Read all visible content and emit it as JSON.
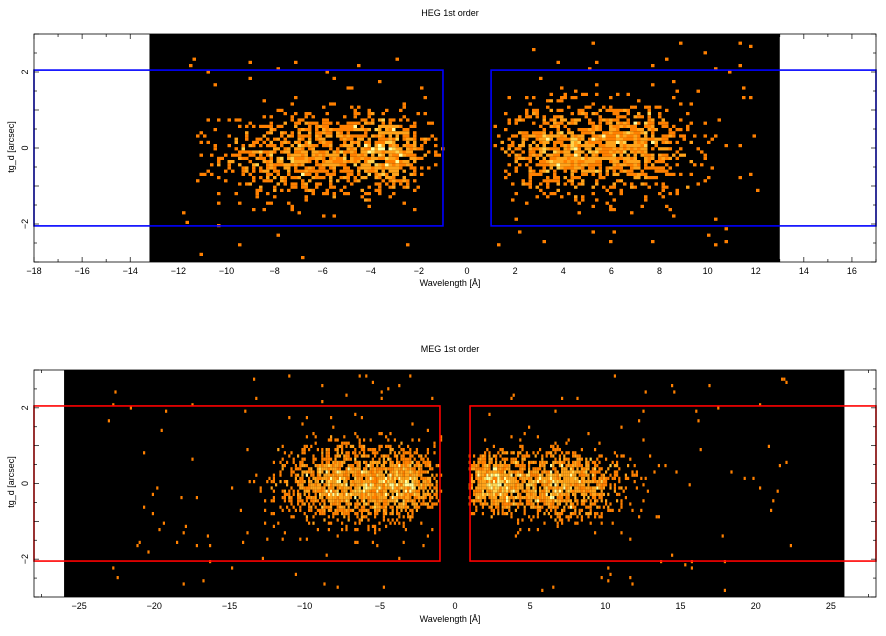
{
  "chart_data": [
    {
      "type": "heatmap",
      "panel": "heg",
      "title": "HEG 1st order",
      "xlabel": "Wavelength [Å]",
      "ylabel": "tg_d [arcsec]",
      "xlim": [
        -18,
        17
      ],
      "ylim": [
        -3,
        3
      ],
      "data_xrange": [
        -13.2,
        13.0
      ],
      "xticks": [
        -18,
        -16,
        -14,
        -12,
        -10,
        -8,
        -6,
        -4,
        -2,
        0,
        2,
        4,
        6,
        8,
        10,
        12,
        14,
        16
      ],
      "yticks": [
        -2,
        0,
        2
      ],
      "colormap": [
        "#000000",
        "#ff8000",
        "#ffa31a",
        "#ffd24d",
        "#ffffa0"
      ],
      "regions": [
        {
          "x": [
            -18,
            -1.0
          ],
          "y": [
            -2.05,
            2.05
          ],
          "color": "#0000ff"
        },
        {
          "x": [
            1.0,
            17
          ],
          "y": [
            -2.05,
            2.05
          ],
          "color": "#0000ff"
        }
      ],
      "emission_blobs": [
        {
          "center": [
            -7.0,
            -0.2
          ],
          "width": [
            1.6,
            0.55
          ],
          "weight": 1.0
        },
        {
          "center": [
            -3.5,
            -0.1
          ],
          "width": [
            1.0,
            0.5
          ],
          "weight": 0.9
        },
        {
          "center": [
            3.8,
            0.0
          ],
          "width": [
            1.1,
            0.55
          ],
          "weight": 0.9
        },
        {
          "center": [
            6.8,
            0.0
          ],
          "width": [
            1.3,
            0.6
          ],
          "weight": 1.0
        }
      ]
    },
    {
      "type": "heatmap",
      "panel": "meg",
      "title": "MEG 1st order",
      "xlabel": "Wavelength [Å]",
      "ylabel": "tg_d [arcsec]",
      "xlim": [
        -28,
        28
      ],
      "ylim": [
        -3,
        3
      ],
      "data_xrange": [
        -26.0,
        25.9
      ],
      "xticks": [
        -25,
        -20,
        -15,
        -10,
        -5,
        0,
        5,
        10,
        15,
        20,
        25
      ],
      "yticks": [
        -2,
        0,
        2
      ],
      "colormap": [
        "#000000",
        "#ff8000",
        "#ffa31a",
        "#ffd24d",
        "#ffffa0"
      ],
      "regions": [
        {
          "x": [
            -28,
            -1.0
          ],
          "y": [
            -2.05,
            2.05
          ],
          "color": "#ff0000"
        },
        {
          "x": [
            1.0,
            28
          ],
          "y": [
            -2.05,
            2.05
          ],
          "color": "#ff0000"
        }
      ],
      "emission_blobs": [
        {
          "center": [
            -7.5,
            0.0
          ],
          "width": [
            2.0,
            0.5
          ],
          "weight": 1.0
        },
        {
          "center": [
            -3.5,
            0.0
          ],
          "width": [
            1.2,
            0.45
          ],
          "weight": 0.6
        },
        {
          "center": [
            6.8,
            0.0
          ],
          "width": [
            2.2,
            0.45
          ],
          "weight": 1.0
        },
        {
          "center": [
            2.5,
            0.0
          ],
          "width": [
            1.0,
            0.35
          ],
          "weight": 0.5
        }
      ]
    }
  ]
}
